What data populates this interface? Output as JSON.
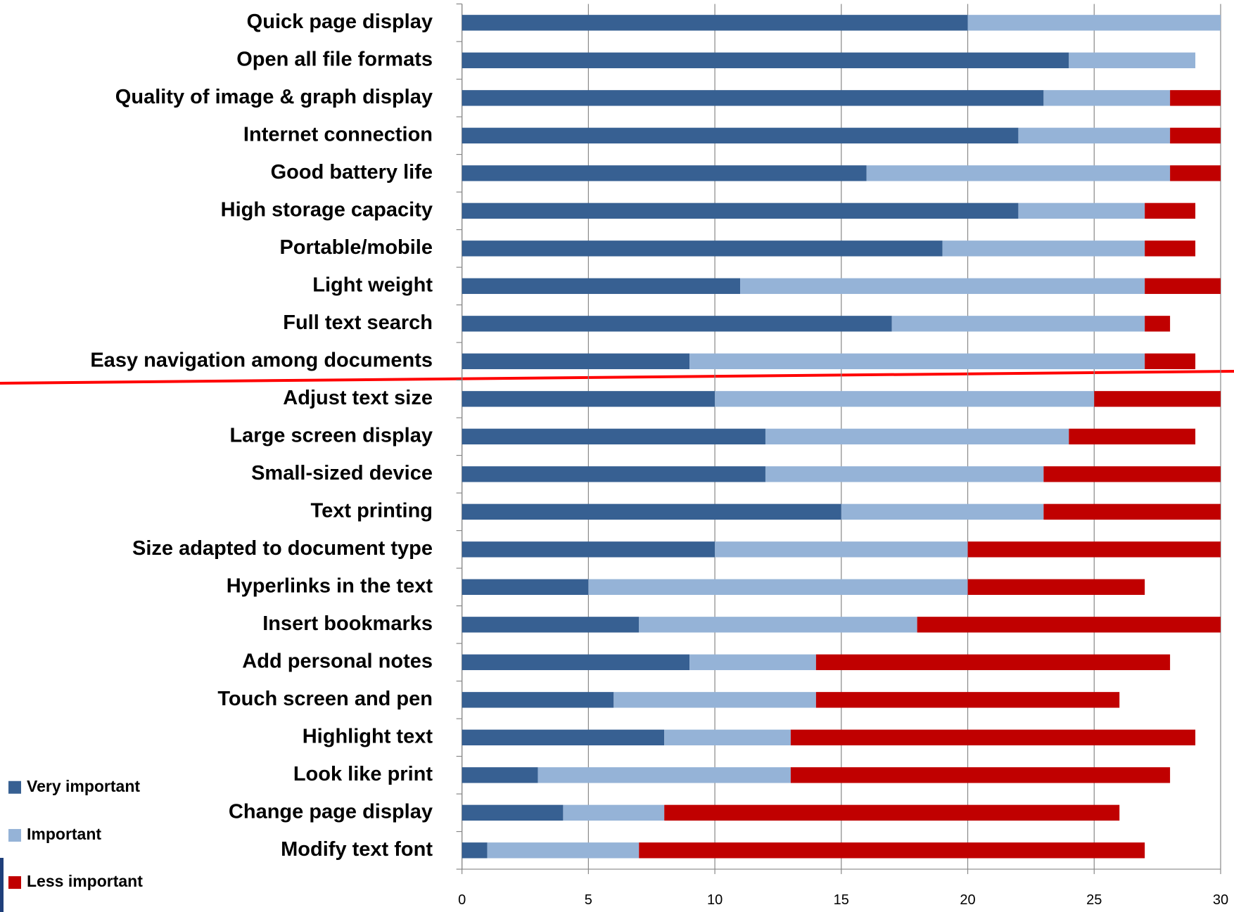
{
  "chart_data": {
    "type": "bar",
    "orientation": "horizontal",
    "stacked": true,
    "categories": [
      "Quick page display",
      "Open all file formats",
      "Quality of image & graph display",
      "Internet connection",
      "Good battery life",
      "High storage capacity",
      "Portable/mobile",
      "Light weight",
      "Full text search",
      "Easy navigation among documents",
      "Adjust text size",
      "Large screen display",
      "Small-sized device",
      "Text printing",
      "Size adapted to document type",
      "Hyperlinks in the text",
      "Insert bookmarks",
      "Add personal notes",
      "Touch screen and pen",
      "Highlight text",
      "Look like print",
      "Change page display",
      "Modify text font"
    ],
    "series": [
      {
        "name": "Very important",
        "color": "#376092",
        "values": [
          20,
          24,
          23,
          22,
          16,
          22,
          19,
          11,
          17,
          9,
          10,
          12,
          12,
          15,
          10,
          5,
          7,
          9,
          6,
          8,
          3,
          4,
          1
        ]
      },
      {
        "name": "Important",
        "color": "#95b3d7",
        "values": [
          10,
          5,
          5,
          6,
          12,
          5,
          8,
          16,
          10,
          18,
          15,
          12,
          11,
          8,
          10,
          15,
          11,
          5,
          8,
          5,
          10,
          4,
          6
        ]
      },
      {
        "name": "Less important",
        "color": "#c00000",
        "values": [
          0,
          0,
          2,
          2,
          2,
          2,
          2,
          3,
          1,
          2,
          5,
          5,
          7,
          7,
          10,
          7,
          12,
          14,
          12,
          16,
          15,
          18,
          20
        ]
      }
    ],
    "xlim": [
      0,
      30
    ],
    "xticks": [
      0,
      5,
      10,
      15,
      20,
      25,
      30
    ],
    "grid": true,
    "legend": "bottom-left"
  }
}
